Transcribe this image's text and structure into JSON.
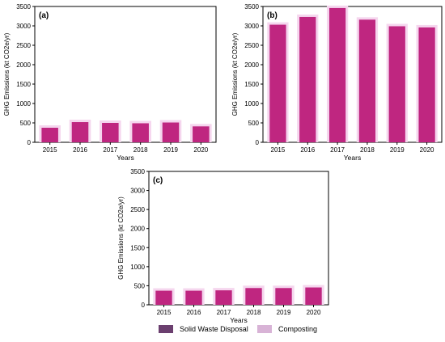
{
  "figure": {
    "colors": {
      "solid_waste": "#6b3f6f",
      "composting": "#d8b3d6",
      "bar": "#bf2680",
      "bar_halo": "#f5d6ee"
    },
    "legend": [
      {
        "label": "Solid Waste Disposal",
        "color": "#6b3f6f"
      },
      {
        "label": "Composting",
        "color": "#d8b3d6"
      }
    ]
  },
  "chart_data": [
    {
      "panel": "(a)",
      "type": "bar",
      "categories": [
        "2015",
        "2016",
        "2017",
        "2018",
        "2019",
        "2020"
      ],
      "series": [
        {
          "name": "Solid Waste Disposal",
          "values": [
            375,
            520,
            500,
            490,
            510,
            410
          ]
        },
        {
          "name": "Composting",
          "values": [
            0,
            0,
            0,
            0,
            0,
            0
          ]
        }
      ],
      "xlabel": "Years",
      "ylabel": "GHG Emissions (kt CO2e/yr)",
      "ylim": [
        0,
        3500
      ],
      "yticks": [
        0,
        500,
        1000,
        1500,
        2000,
        2500,
        3000,
        3500
      ],
      "grid": false
    },
    {
      "panel": "(b)",
      "type": "bar",
      "categories": [
        "2015",
        "2016",
        "2017",
        "2018",
        "2019",
        "2020"
      ],
      "series": [
        {
          "name": "Solid Waste Disposal",
          "values": [
            3030,
            3230,
            3460,
            3160,
            2990,
            2960
          ]
        },
        {
          "name": "Composting",
          "values": [
            0,
            0,
            0,
            0,
            0,
            0
          ]
        }
      ],
      "xlabel": "Years",
      "ylabel": "GHG Emissions (kt CO2e/yr)",
      "ylim": [
        0,
        3500
      ],
      "yticks": [
        0,
        500,
        1000,
        1500,
        2000,
        2500,
        3000,
        3500
      ],
      "grid": false
    },
    {
      "panel": "(c)",
      "type": "bar",
      "categories": [
        "2015",
        "2016",
        "2017",
        "2018",
        "2019",
        "2020"
      ],
      "series": [
        {
          "name": "Solid Waste Disposal",
          "values": [
            370,
            370,
            380,
            440,
            440,
            455
          ]
        },
        {
          "name": "Composting",
          "values": [
            0,
            0,
            0,
            0,
            0,
            0
          ]
        }
      ],
      "xlabel": "Years",
      "ylabel": "GHG Emissions (kt CO2e/yr)",
      "ylim": [
        0,
        3500
      ],
      "yticks": [
        0,
        500,
        1000,
        1500,
        2000,
        2500,
        3000,
        3500
      ],
      "grid": false
    }
  ]
}
